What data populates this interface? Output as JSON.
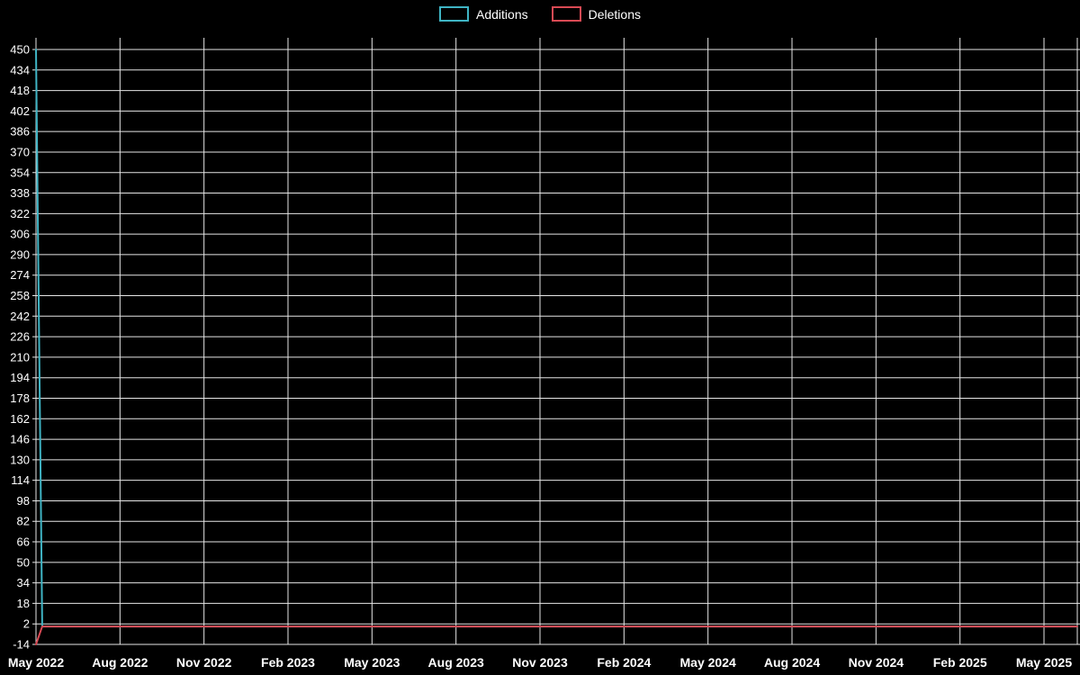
{
  "chart_data": {
    "type": "line",
    "title": "",
    "xlabel": "",
    "ylabel": "",
    "background_color": "#000000",
    "grid": true,
    "grid_color": "#e6e6e6",
    "text_color": "#ffffff",
    "legend_position": "top-center",
    "x_tick_labels": [
      "May 2022",
      "Aug 2022",
      "Nov 2022",
      "Feb 2023",
      "May 2023",
      "Aug 2023",
      "Nov 2023",
      "Feb 2024",
      "May 2024",
      "Aug 2024",
      "Nov 2024",
      "Feb 2025",
      "May 2025"
    ],
    "y_ticks": [
      -14,
      2,
      18,
      34,
      50,
      66,
      82,
      98,
      114,
      130,
      146,
      162,
      178,
      194,
      210,
      226,
      242,
      258,
      274,
      290,
      306,
      322,
      338,
      354,
      370,
      386,
      402,
      418,
      434,
      450
    ],
    "ylim": [
      -14,
      450
    ],
    "series": [
      {
        "name": "Additions",
        "color": "#3fb4c4",
        "points": [
          [
            0,
            450
          ],
          [
            0.006,
            0
          ],
          [
            1,
            0
          ]
        ]
      },
      {
        "name": "Deletions",
        "color": "#d94a54",
        "points": [
          [
            0,
            -14
          ],
          [
            0.006,
            0
          ],
          [
            1,
            0
          ]
        ]
      }
    ]
  }
}
